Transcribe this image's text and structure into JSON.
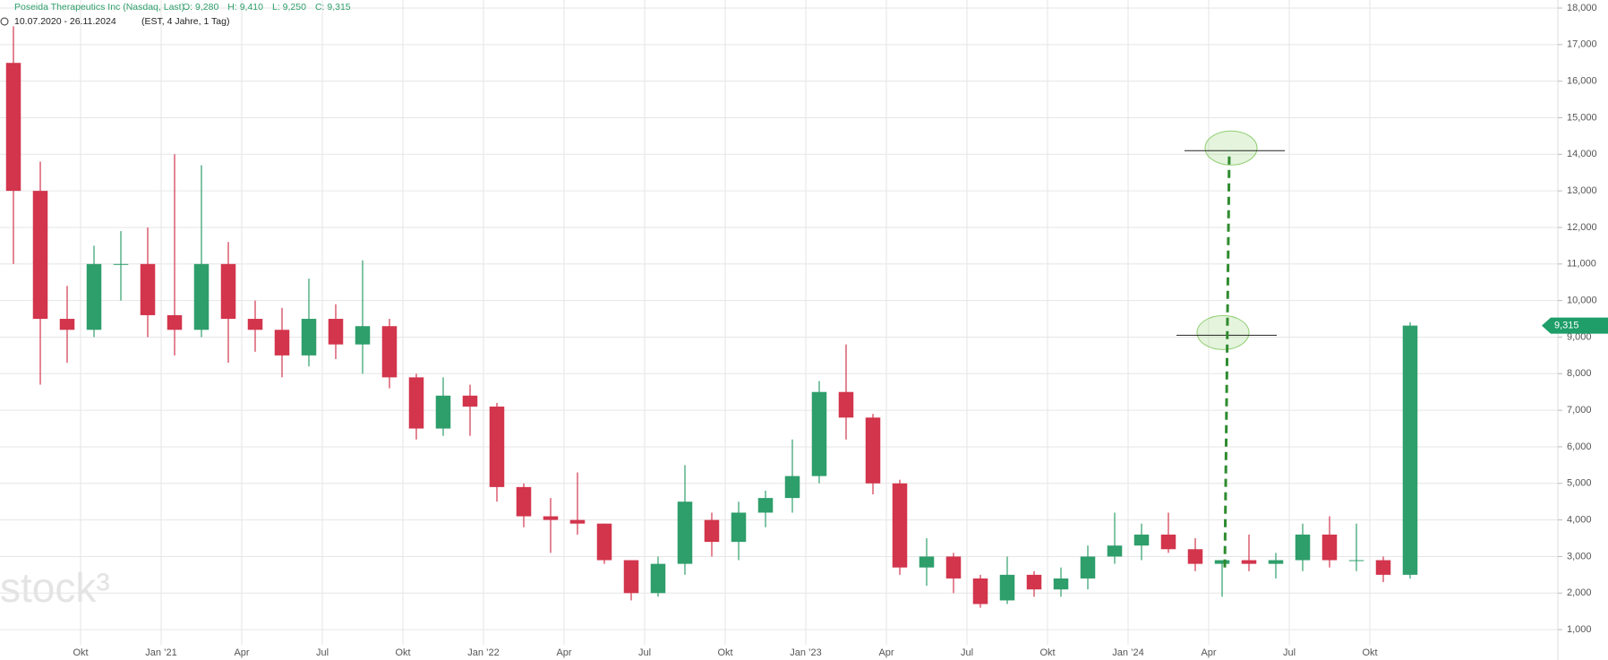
{
  "chart_data": {
    "type": "candlestick",
    "title": "Poseida Therapeutics Inc (Nasdaq, Last)",
    "ohlc_texts": [
      "O: 9,280",
      "H: 9,410",
      "L: 9,250",
      "C: 9,315"
    ],
    "period": "10.07.2020 - 26.11.2024",
    "period_note": "(EST, 4 Jahre, 1 Tag)",
    "watermark": "stock³",
    "up_color": "#2e9e6b",
    "down_color": "#d2354c",
    "grid": true,
    "x": [
      "2020-07",
      "2020-08",
      "2020-09",
      "2020-10",
      "2020-11",
      "2020-12",
      "2021-01",
      "2021-02",
      "2021-03",
      "2021-04",
      "2021-05",
      "2021-06",
      "2021-07",
      "2021-08",
      "2021-09",
      "2021-10",
      "2021-11",
      "2021-12",
      "2022-01",
      "2022-02",
      "2022-03",
      "2022-04",
      "2022-05",
      "2022-06",
      "2022-07",
      "2022-08",
      "2022-09",
      "2022-10",
      "2022-11",
      "2022-12",
      "2023-01",
      "2023-02",
      "2023-03",
      "2023-04",
      "2023-05",
      "2023-06",
      "2023-07",
      "2023-08",
      "2023-09",
      "2023-10",
      "2023-11",
      "2023-12",
      "2024-01",
      "2024-02",
      "2024-03",
      "2024-04",
      "2024-05",
      "2024-06",
      "2024-07",
      "2024-08",
      "2024-09",
      "2024-10",
      "2024-11"
    ],
    "open": [
      16.5,
      13.0,
      9.5,
      9.2,
      11.0,
      11.0,
      9.6,
      9.2,
      11.0,
      9.5,
      9.2,
      8.5,
      9.5,
      8.8,
      9.3,
      7.9,
      6.5,
      7.4,
      7.1,
      4.9,
      4.1,
      4.0,
      3.9,
      2.9,
      2.0,
      2.8,
      4.0,
      3.4,
      4.2,
      4.6,
      5.2,
      7.5,
      6.8,
      5.0,
      2.7,
      3.0,
      2.4,
      1.8,
      2.5,
      2.1,
      2.4,
      3.0,
      3.3,
      3.6,
      3.2,
      2.8,
      2.9,
      2.8,
      2.9,
      3.6,
      2.9,
      2.9,
      2.5
    ],
    "high": [
      17.5,
      13.8,
      10.4,
      11.5,
      11.9,
      12.0,
      14.0,
      13.7,
      11.6,
      10.0,
      9.8,
      10.6,
      9.9,
      11.1,
      9.5,
      8.0,
      7.9,
      7.7,
      7.2,
      5.0,
      4.6,
      5.3,
      3.9,
      2.9,
      3.0,
      5.5,
      4.2,
      4.5,
      4.8,
      6.2,
      7.8,
      8.8,
      6.9,
      5.1,
      3.5,
      3.1,
      2.5,
      3.0,
      2.6,
      2.7,
      3.3,
      4.2,
      3.9,
      4.2,
      3.5,
      2.9,
      3.6,
      3.1,
      3.9,
      4.1,
      3.9,
      3.0,
      9.41
    ],
    "low": [
      11.0,
      7.7,
      8.3,
      9.0,
      10.0,
      9.0,
      8.5,
      9.0,
      8.3,
      8.6,
      7.9,
      8.2,
      8.4,
      8.0,
      7.6,
      6.2,
      6.3,
      6.3,
      4.5,
      3.8,
      3.1,
      3.6,
      2.8,
      1.8,
      1.9,
      2.5,
      3.0,
      2.9,
      3.8,
      4.2,
      5.0,
      6.2,
      4.7,
      2.5,
      2.2,
      2.0,
      1.6,
      1.7,
      1.9,
      1.9,
      2.1,
      2.8,
      2.9,
      3.1,
      2.6,
      1.9,
      2.6,
      2.4,
      2.6,
      2.7,
      2.6,
      2.3,
      2.4
    ],
    "close": [
      13.0,
      9.5,
      9.2,
      11.0,
      11.0,
      9.6,
      9.2,
      11.0,
      9.5,
      9.2,
      8.5,
      9.5,
      8.8,
      9.3,
      7.9,
      6.5,
      7.4,
      7.1,
      4.9,
      4.1,
      4.0,
      3.9,
      2.9,
      2.0,
      2.8,
      4.5,
      3.4,
      4.2,
      4.6,
      5.2,
      7.5,
      6.8,
      5.0,
      2.7,
      3.0,
      2.4,
      1.7,
      2.5,
      2.1,
      2.4,
      3.0,
      3.3,
      3.6,
      3.2,
      2.8,
      2.9,
      2.8,
      2.9,
      3.6,
      2.9,
      2.9,
      2.5,
      9.315
    ],
    "last_price": {
      "value": 9.315,
      "label": "9,315"
    },
    "levels": [
      14.1,
      9.05
    ],
    "target_line": [
      2.7,
      14.1
    ],
    "xlim": [
      "2020-07",
      "2025-05"
    ],
    "xticks": [
      {
        "value": "2020-10",
        "label": "Okt"
      },
      {
        "value": "2021-01",
        "label": "Jan ’21"
      },
      {
        "value": "2021-04",
        "label": "Apr"
      },
      {
        "value": "2021-07",
        "label": "Jul"
      },
      {
        "value": "2021-10",
        "label": "Okt"
      },
      {
        "value": "2022-01",
        "label": "Jan ’22"
      },
      {
        "value": "2022-04",
        "label": "Apr"
      },
      {
        "value": "2022-07",
        "label": "Jul"
      },
      {
        "value": "2022-10",
        "label": "Okt"
      },
      {
        "value": "2023-01",
        "label": "Jan ’23"
      },
      {
        "value": "2023-04",
        "label": "Apr"
      },
      {
        "value": "2023-07",
        "label": "Jul"
      },
      {
        "value": "2023-10",
        "label": "Okt"
      },
      {
        "value": "2024-01",
        "label": "Jan ’24"
      },
      {
        "value": "2024-04",
        "label": "Apr"
      },
      {
        "value": "2024-07",
        "label": "Jul"
      },
      {
        "value": "2024-10",
        "label": "Okt"
      }
    ],
    "ylim": [
      0.17,
      18.22
    ],
    "yticks": [
      {
        "value": 1,
        "label": "1,000"
      },
      {
        "value": 2,
        "label": "2,000"
      },
      {
        "value": 3,
        "label": "3,000"
      },
      {
        "value": 4,
        "label": "4,000"
      },
      {
        "value": 5,
        "label": "5,000"
      },
      {
        "value": 6,
        "label": "6,000"
      },
      {
        "value": 7,
        "label": "7,000"
      },
      {
        "value": 8,
        "label": "8,000"
      },
      {
        "value": 9,
        "label": "9,000"
      },
      {
        "value": 10,
        "label": "10,000"
      },
      {
        "value": 11,
        "label": "11,000"
      },
      {
        "value": 12,
        "label": "12,000"
      },
      {
        "value": 13,
        "label": "13,000"
      },
      {
        "value": 14,
        "label": "14,000"
      },
      {
        "value": 15,
        "label": "15,000"
      },
      {
        "value": 16,
        "label": "16,000"
      },
      {
        "value": 17,
        "label": "17,000"
      },
      {
        "value": 18,
        "label": "18,000"
      }
    ]
  }
}
